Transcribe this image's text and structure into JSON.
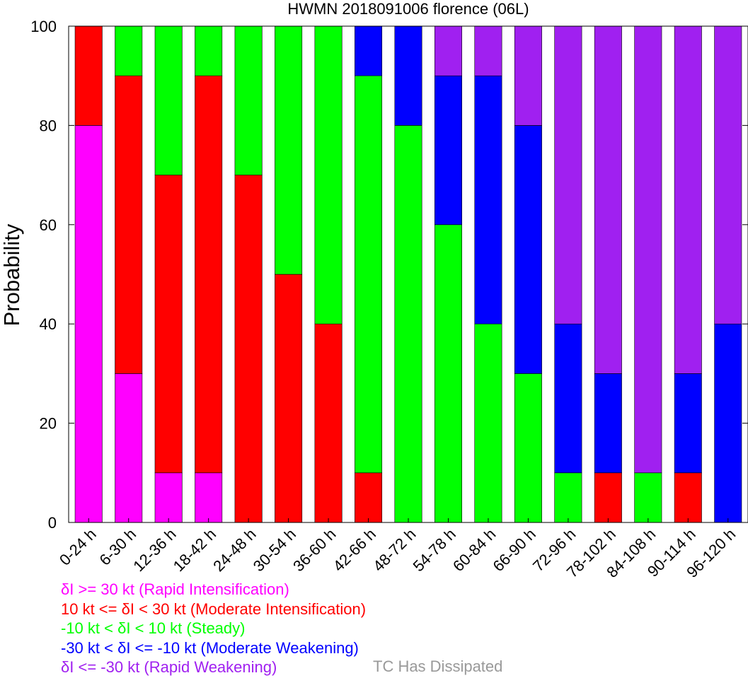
{
  "chart_data": {
    "type": "bar",
    "stacked": true,
    "title": "HWMN 2018091006 florence (06L)",
    "xlabel": "",
    "ylabel": "Probability",
    "ylim": [
      0,
      100
    ],
    "yticks": [
      "0",
      "20",
      "40",
      "60",
      "80",
      "100"
    ],
    "grid": false,
    "categories": [
      "0-24 h",
      "6-30 h",
      "12-36 h",
      "18-42 h",
      "24-48 h",
      "30-54 h",
      "36-60 h",
      "42-66 h",
      "48-72 h",
      "54-78 h",
      "60-84 h",
      "66-90 h",
      "72-96 h",
      "78-102 h",
      "84-108 h",
      "90-114 h",
      "96-120 h"
    ],
    "series": [
      {
        "name": "δI >= 30 kt (Rapid Intensification)",
        "color": "#ff00ff",
        "values": [
          80,
          30,
          10,
          10,
          0,
          0,
          0,
          0,
          0,
          0,
          0,
          0,
          0,
          0,
          0,
          0,
          0
        ]
      },
      {
        "name": "10 kt <= δI < 30 kt (Moderate Intensification)",
        "color": "#ff0000",
        "values": [
          20,
          60,
          60,
          80,
          70,
          50,
          40,
          10,
          0,
          0,
          0,
          0,
          0,
          10,
          0,
          10,
          0
        ]
      },
      {
        "name": "-10 kt < δI < 10 kt (Steady)",
        "color": "#00ff00",
        "values": [
          0,
          10,
          30,
          10,
          30,
          50,
          60,
          80,
          80,
          60,
          40,
          30,
          10,
          0,
          10,
          0,
          0
        ]
      },
      {
        "name": "-30 kt < δI <= -10 kt (Moderate Weakening)",
        "color": "#0000ff",
        "values": [
          0,
          0,
          0,
          0,
          0,
          0,
          0,
          10,
          20,
          30,
          50,
          50,
          30,
          20,
          0,
          20,
          40
        ]
      },
      {
        "name": "δI <= -30 kt (Rapid Weakening)",
        "color": "#a020f0",
        "values": [
          0,
          0,
          0,
          0,
          0,
          0,
          0,
          0,
          0,
          10,
          10,
          20,
          60,
          70,
          90,
          70,
          60
        ]
      }
    ],
    "legend": {
      "placement": "bottom-left",
      "dissipated_label": "TC Has Dissipated",
      "dissipated_color": "#999999"
    }
  }
}
